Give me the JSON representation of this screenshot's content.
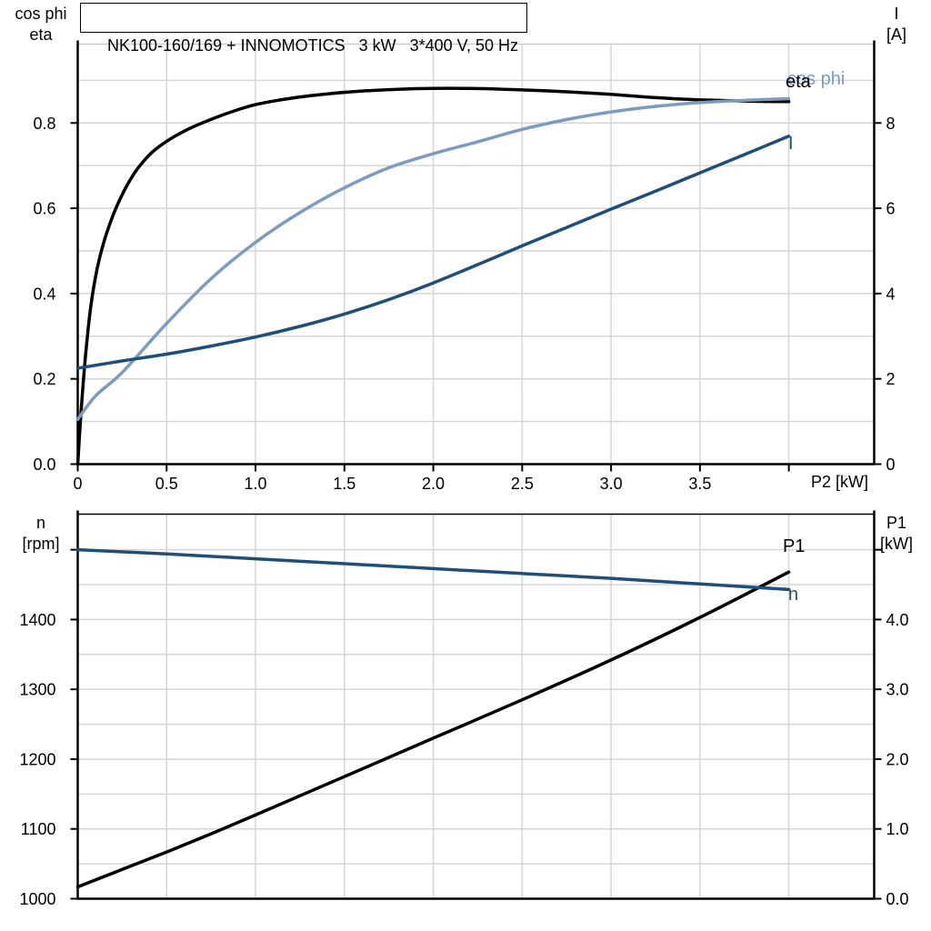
{
  "colors": {
    "grid": "#d6d6d6",
    "axis": "#000000",
    "eta": "#000000",
    "cos_phi": "#7b9cbf",
    "current": "#1f4e79",
    "speed": "#1f4e79",
    "p1": "#000000",
    "top_spine_chart1": "#cccccc",
    "top_spine_chart2": "#000000"
  },
  "chart_data": [
    {
      "type": "line",
      "title": "NK100-160/169 + INNOMOTICS   3 kW   3*400 V, 50 Hz",
      "xlabel": "P2 [kW]",
      "ylabel_left_lines": [
        "cos phi",
        "eta"
      ],
      "ylabel_right_lines": [
        "I",
        "[A]"
      ],
      "xlim": [
        0,
        4.48
      ],
      "ylim_left": [
        0,
        0.985
      ],
      "ylim_right": [
        0,
        9.85
      ],
      "grid_x_step": 0.5,
      "grid_y_step": 0.1,
      "legend_position": "end-of-curve",
      "x_ticks": [
        {
          "v": 0,
          "label": "0"
        },
        {
          "v": 0.5,
          "label": "0.5"
        },
        {
          "v": 1.0,
          "label": "1.0"
        },
        {
          "v": 1.5,
          "label": "1.5"
        },
        {
          "v": 2.0,
          "label": "2.0"
        },
        {
          "v": 2.5,
          "label": "2.5"
        },
        {
          "v": 3.0,
          "label": "3.0"
        },
        {
          "v": 3.5,
          "label": "3.5"
        },
        {
          "v": 4.0,
          "label": ""
        }
      ],
      "y_ticks_left": [
        {
          "v": 0.0,
          "label": "0.0"
        },
        {
          "v": 0.2,
          "label": "0.2"
        },
        {
          "v": 0.4,
          "label": "0.4"
        },
        {
          "v": 0.6,
          "label": "0.6"
        },
        {
          "v": 0.8,
          "label": "0.8"
        }
      ],
      "y_ticks_right": [
        {
          "v": 0,
          "label": "0"
        },
        {
          "v": 2,
          "label": "2"
        },
        {
          "v": 4,
          "label": "4"
        },
        {
          "v": 6,
          "label": "6"
        },
        {
          "v": 8,
          "label": "8"
        }
      ],
      "series": [
        {
          "name": "eta",
          "axis": "left",
          "color": "#000000",
          "x": [
            0,
            0.02,
            0.045,
            0.075,
            0.11,
            0.15,
            0.2,
            0.25,
            0.3,
            0.35,
            0.42,
            0.5,
            0.6,
            0.7,
            0.85,
            1.0,
            1.2,
            1.4,
            1.6,
            1.8,
            2.0,
            2.2,
            2.4,
            2.6,
            2.8,
            3.0,
            3.2,
            3.4,
            3.6,
            3.8,
            4.0
          ],
          "y": [
            0,
            0.13,
            0.26,
            0.375,
            0.46,
            0.525,
            0.585,
            0.632,
            0.67,
            0.7,
            0.732,
            0.757,
            0.781,
            0.8,
            0.824,
            0.843,
            0.858,
            0.868,
            0.875,
            0.879,
            0.881,
            0.881,
            0.879,
            0.876,
            0.872,
            0.867,
            0.861,
            0.856,
            0.853,
            0.851,
            0.85
          ]
        },
        {
          "name": "cos phi",
          "axis": "left",
          "color": "#7b9cbf",
          "x": [
            0,
            0.1,
            0.25,
            0.5,
            0.75,
            1.0,
            1.25,
            1.5,
            1.75,
            2.0,
            2.25,
            2.5,
            2.75,
            3.0,
            3.25,
            3.5,
            3.75,
            4.0
          ],
          "y": [
            0.105,
            0.16,
            0.215,
            0.33,
            0.435,
            0.52,
            0.59,
            0.648,
            0.695,
            0.728,
            0.756,
            0.785,
            0.808,
            0.826,
            0.839,
            0.848,
            0.853,
            0.857
          ]
        },
        {
          "name": "I",
          "axis": "right",
          "color": "#1f4e79",
          "x": [
            0,
            0.25,
            0.5,
            0.75,
            1.0,
            1.25,
            1.5,
            1.75,
            2.0,
            2.25,
            2.5,
            2.75,
            3.0,
            3.25,
            3.5,
            3.75,
            4.0
          ],
          "y": [
            2.25,
            2.42,
            2.58,
            2.77,
            2.98,
            3.23,
            3.52,
            3.86,
            4.25,
            4.68,
            5.12,
            5.55,
            5.98,
            6.4,
            6.83,
            7.26,
            7.69
          ]
        }
      ]
    },
    {
      "type": "line",
      "title": "",
      "xlabel": "",
      "ylabel_left_lines": [
        "n",
        "[rpm]"
      ],
      "ylabel_right_lines": [
        "P1",
        "[kW]"
      ],
      "xlim": [
        0,
        4.48
      ],
      "ylim_left": [
        1000,
        1551
      ],
      "ylim_right": [
        0,
        5.51
      ],
      "grid_x_step": 0.5,
      "grid_y_step": 50,
      "legend_position": "end-of-curve",
      "x_ticks": [],
      "y_ticks_left": [
        {
          "v": 1000,
          "label": "1000"
        },
        {
          "v": 1100,
          "label": "1100"
        },
        {
          "v": 1200,
          "label": "1200"
        },
        {
          "v": 1300,
          "label": "1300"
        },
        {
          "v": 1400,
          "label": "1400"
        },
        {
          "v": 1500,
          "label": ""
        }
      ],
      "y_ticks_right": [
        {
          "v": 0,
          "label": "0.0"
        },
        {
          "v": 1,
          "label": "1.0"
        },
        {
          "v": 2,
          "label": "2.0"
        },
        {
          "v": 3,
          "label": "3.0"
        },
        {
          "v": 4,
          "label": "4.0"
        },
        {
          "v": 5,
          "label": ""
        }
      ],
      "series": [
        {
          "name": "P1",
          "axis": "right",
          "color": "#000000",
          "x": [
            0,
            0.25,
            0.5,
            0.75,
            1.0,
            1.5,
            2.0,
            2.5,
            3.0,
            3.5,
            4.0
          ],
          "y": [
            0.17,
            0.42,
            0.67,
            0.93,
            1.2,
            1.75,
            2.3,
            2.85,
            3.42,
            4.03,
            4.68
          ]
        },
        {
          "name": "n",
          "axis": "left",
          "color": "#1f4e79",
          "x": [
            0,
            0.5,
            1.0,
            1.5,
            2.0,
            2.5,
            3.0,
            3.5,
            4.0
          ],
          "y": [
            1500,
            1494,
            1487,
            1480,
            1473,
            1466,
            1459,
            1451,
            1443
          ]
        }
      ]
    }
  ]
}
